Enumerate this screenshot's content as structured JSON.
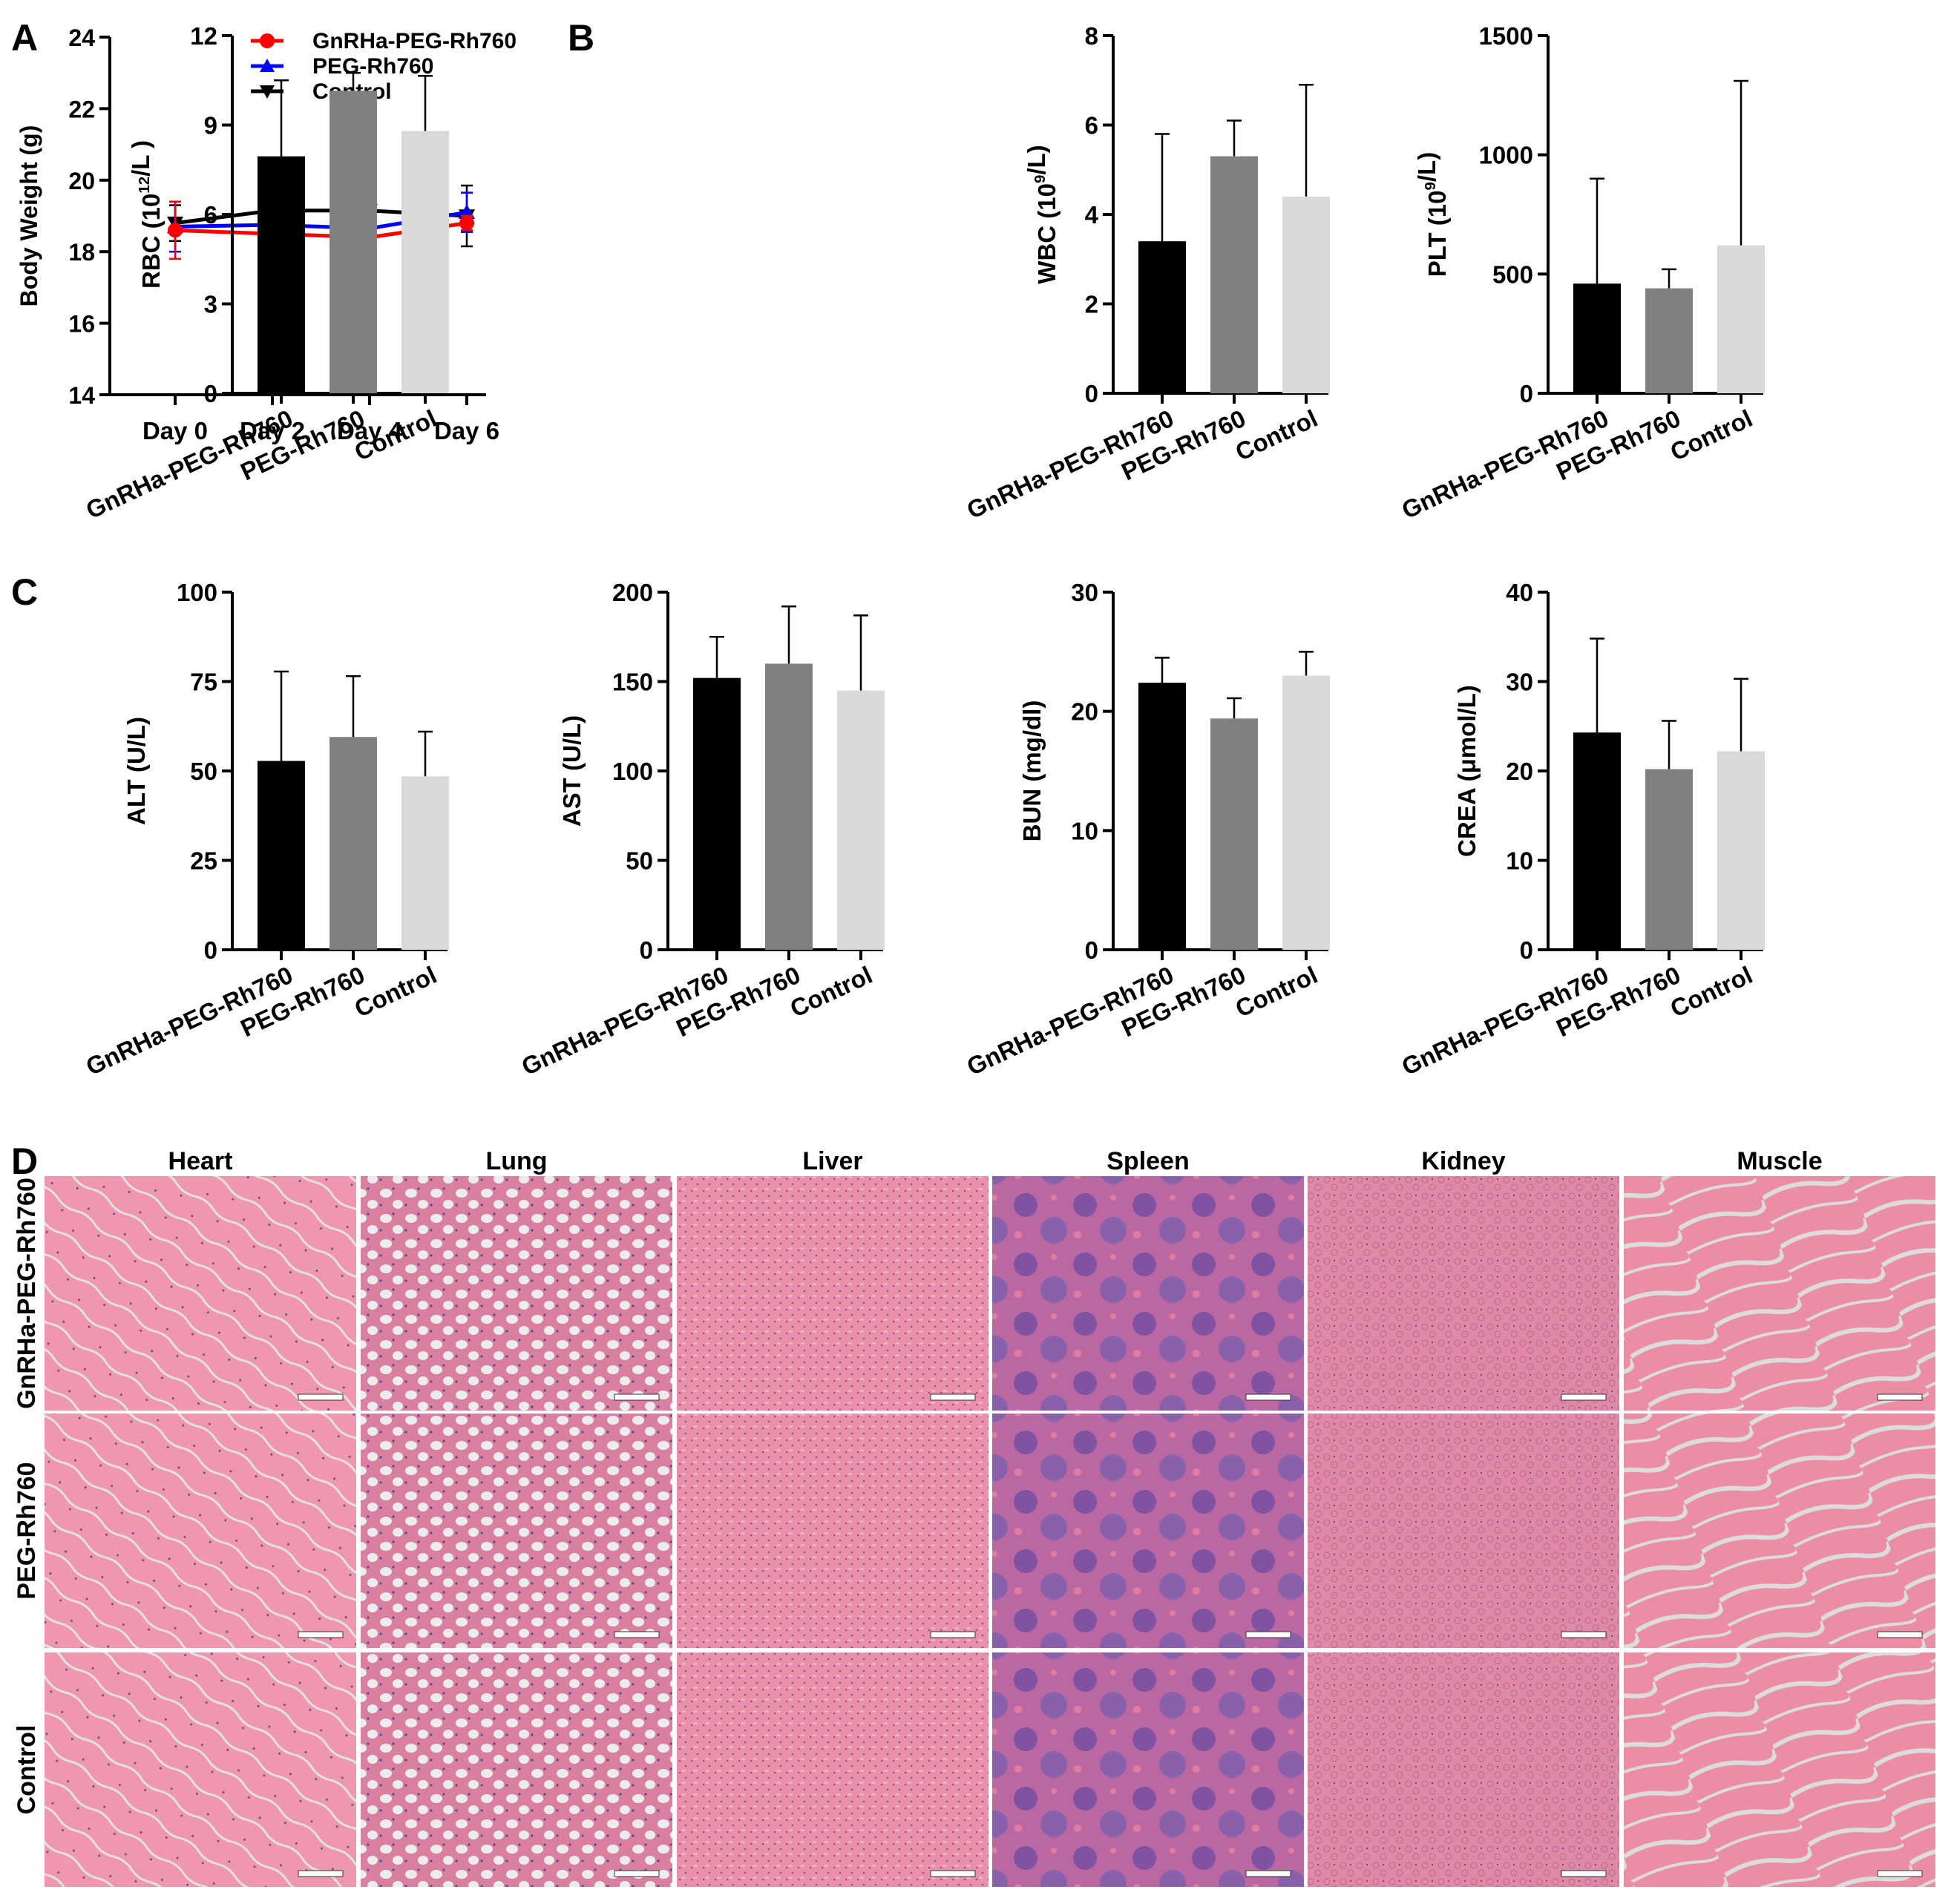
{
  "panel_letters": [
    "A",
    "B",
    "C",
    "D"
  ],
  "colors": {
    "gnrha": "#ff0000",
    "peg": "#0000ff",
    "control": "#000000",
    "bar_black": "#000000",
    "bar_gray": "#808080",
    "bar_light": "#d9d9d9",
    "tissue_pink": "#e8849c",
    "tissue_purple": "#7a4a9e",
    "slide_background": "#e4e4e4"
  },
  "chart_data": [
    {
      "type": "line",
      "panel": "A",
      "categories": [
        "Day 0",
        "Day 2",
        "Day 4",
        "Day 6"
      ],
      "ylabel": "Body Weight (g)",
      "ylim": [
        14,
        24
      ],
      "yticks": [
        14,
        16,
        18,
        20,
        22,
        24
      ],
      "legend": "top",
      "series": [
        {
          "name": "GnRHa-PEG-Rh760",
          "values": [
            18.6,
            18.5,
            18.4,
            18.8
          ],
          "errors": [
            0.8,
            0.6,
            0.9,
            0.2
          ],
          "marker": "circle",
          "color": "#ff0000"
        },
        {
          "name": "PEG-Rh760",
          "values": [
            18.7,
            18.75,
            18.65,
            19.1
          ],
          "errors": [
            0.7,
            0.5,
            0.6,
            0.55
          ],
          "marker": "triangle-up",
          "color": "#0000ff"
        },
        {
          "name": "Control",
          "values": [
            18.8,
            19.15,
            19.15,
            19.0
          ],
          "errors": [
            0.5,
            1.0,
            1.0,
            0.85
          ],
          "marker": "triangle-down",
          "color": "#000000"
        }
      ]
    },
    {
      "type": "bar",
      "panel": "B",
      "ylabel": "RBC (10^12/L )",
      "ylim": [
        0,
        12
      ],
      "yticks": [
        0,
        3,
        6,
        9,
        12
      ],
      "categories": [
        "GnRHa-PEG-Rh760",
        "PEG-Rh760",
        "Control"
      ],
      "values": [
        7.95,
        10.15,
        8.8
      ],
      "errors": [
        2.55,
        0.6,
        1.85
      ]
    },
    {
      "type": "bar",
      "panel": "B",
      "ylabel": "WBC (10^9/L)",
      "ylim": [
        0,
        8
      ],
      "yticks": [
        0,
        2,
        4,
        6,
        8
      ],
      "categories": [
        "GnRHa-PEG-Rh760",
        "PEG-Rh760",
        "Control"
      ],
      "values": [
        3.4,
        5.3,
        4.4
      ],
      "errors": [
        2.4,
        0.8,
        2.5
      ]
    },
    {
      "type": "bar",
      "panel": "B",
      "ylabel": "PLT (10^9/L)",
      "ylim": [
        0,
        1500
      ],
      "yticks": [
        0,
        500,
        1000,
        1500
      ],
      "categories": [
        "GnRHa-PEG-Rh760",
        "PEG-Rh760",
        "Control"
      ],
      "values": [
        460,
        440,
        620
      ],
      "errors": [
        440,
        80,
        690
      ]
    },
    {
      "type": "bar",
      "panel": "C",
      "ylabel": "ALT (U/L)",
      "ylim": [
        0,
        100
      ],
      "yticks": [
        0,
        25,
        50,
        75,
        100
      ],
      "categories": [
        "GnRHa-PEG-Rh760",
        "PEG-Rh760",
        "Control"
      ],
      "values": [
        52.8,
        59.5,
        48.5
      ],
      "errors": [
        25.0,
        17.0,
        12.5
      ]
    },
    {
      "type": "bar",
      "panel": "C",
      "ylabel": "AST (U/L)",
      "ylim": [
        0,
        200
      ],
      "yticks": [
        0,
        50,
        100,
        150,
        200
      ],
      "categories": [
        "GnRHa-PEG-Rh760",
        "PEG-Rh760",
        "Control"
      ],
      "values": [
        152,
        160,
        145
      ],
      "errors": [
        23,
        32,
        42
      ]
    },
    {
      "type": "bar",
      "panel": "C",
      "ylabel": "BUN (mg/dl)",
      "ylim": [
        0,
        30
      ],
      "yticks": [
        0,
        10,
        20,
        30
      ],
      "categories": [
        "GnRHa-PEG-Rh760",
        "PEG-Rh760",
        "Control"
      ],
      "values": [
        22.4,
        19.4,
        23.0
      ],
      "errors": [
        2.1,
        1.7,
        2.0
      ]
    },
    {
      "type": "bar",
      "panel": "C",
      "ylabel": "CREA (μmol/L)",
      "ylim": [
        0,
        40
      ],
      "yticks": [
        0,
        10,
        20,
        30,
        40
      ],
      "categories": [
        "GnRHa-PEG-Rh760",
        "PEG-Rh760",
        "Control"
      ],
      "values": [
        24.3,
        20.2,
        22.2
      ],
      "errors": [
        10.5,
        5.4,
        8.1
      ]
    }
  ],
  "histology": {
    "columns": [
      "Heart",
      "Lung",
      "Liver",
      "Spleen",
      "Kidney",
      "Muscle"
    ],
    "rows": [
      "GnRHa-PEG-Rh760",
      "PEG-Rh760",
      "Control"
    ]
  }
}
